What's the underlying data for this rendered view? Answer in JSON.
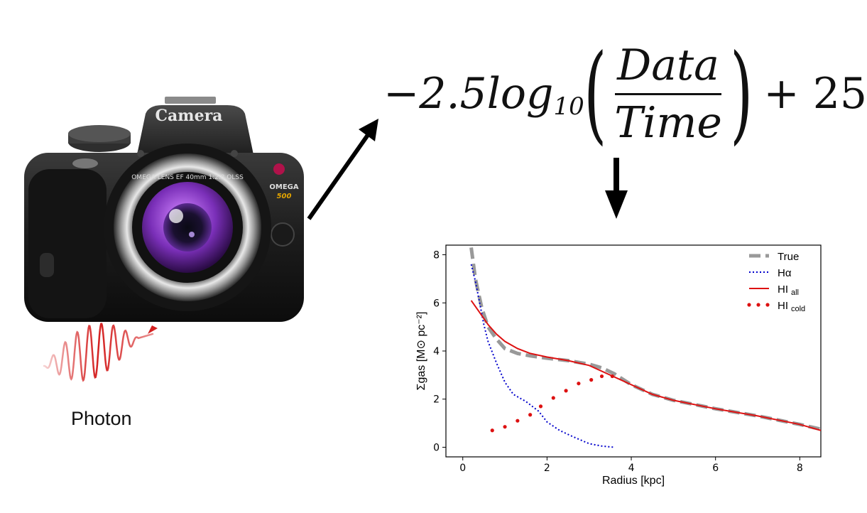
{
  "camera": {
    "brand": "Camera",
    "lens_text": "OMEGA LENS EF 40mm 1:2.8 OLSS",
    "model_badge": "OMEGA",
    "model_number": "500",
    "colors": {
      "body": "#1b1b1b",
      "lens": "#8b3fc9"
    }
  },
  "photon": {
    "label": "Photon",
    "color": "#d42020"
  },
  "formula": {
    "prefix": "−2.5",
    "func": "log",
    "sub": "10",
    "numerator": "Data",
    "denominator": "Time",
    "suffix": "+ 25"
  },
  "chart_data": {
    "type": "line",
    "xlabel": "Radius [kpc]",
    "ylabel": "Σgas [M⊙ pc⁻²]",
    "xlim": [
      -0.4,
      8.5
    ],
    "ylim": [
      -0.4,
      8.4
    ],
    "xticks": [
      0,
      2,
      4,
      6,
      8
    ],
    "yticks": [
      0,
      2,
      4,
      6,
      8
    ],
    "grid": false,
    "legend_position": "top-right",
    "series": [
      {
        "name": "True",
        "style": "dashed",
        "color": "#999999",
        "x": [
          0.2,
          0.3,
          0.45,
          0.6,
          0.8,
          1.0,
          1.3,
          1.6,
          2.0,
          2.5,
          3.0,
          3.3,
          3.6,
          4.0,
          4.5,
          5.0,
          6.0,
          7.0,
          8.0,
          8.5
        ],
        "y": [
          8.3,
          7.0,
          5.8,
          5.0,
          4.5,
          4.1,
          3.9,
          3.8,
          3.7,
          3.6,
          3.45,
          3.3,
          3.05,
          2.6,
          2.2,
          1.95,
          1.6,
          1.3,
          0.95,
          0.75
        ]
      },
      {
        "name": "Hα",
        "style": "dotted",
        "color": "#0000cc",
        "x": [
          0.2,
          0.3,
          0.4,
          0.5,
          0.6,
          0.8,
          1.0,
          1.2,
          1.5,
          1.8,
          2.0,
          2.3,
          2.6,
          3.0,
          3.3,
          3.6
        ],
        "y": [
          7.6,
          6.9,
          6.0,
          5.1,
          4.4,
          3.5,
          2.7,
          2.2,
          1.9,
          1.5,
          1.05,
          0.7,
          0.45,
          0.15,
          0.05,
          0.0
        ]
      },
      {
        "name": "HI all",
        "style": "solid",
        "color": "#dd1111",
        "x": [
          0.2,
          0.4,
          0.6,
          0.8,
          1.0,
          1.3,
          1.6,
          2.0,
          2.5,
          3.0,
          3.5,
          4.0,
          4.5,
          5.0,
          6.0,
          7.0,
          8.0,
          8.5
        ],
        "y": [
          6.1,
          5.6,
          5.1,
          4.7,
          4.4,
          4.1,
          3.9,
          3.75,
          3.6,
          3.4,
          3.0,
          2.6,
          2.2,
          1.95,
          1.6,
          1.3,
          0.95,
          0.7
        ]
      },
      {
        "name": "HI cold",
        "style": "dots",
        "color": "#dd1111",
        "x": [
          0.7,
          1.0,
          1.3,
          1.6,
          1.85,
          2.15,
          2.45,
          2.75,
          3.05,
          3.3,
          3.55
        ],
        "y": [
          0.7,
          0.85,
          1.1,
          1.35,
          1.7,
          2.05,
          2.35,
          2.65,
          2.8,
          2.95,
          2.95
        ]
      }
    ],
    "legend": [
      {
        "label": "True",
        "sub": ""
      },
      {
        "label": "Hα",
        "sub": ""
      },
      {
        "label": "HI",
        "sub": "all"
      },
      {
        "label": "HI",
        "sub": "cold"
      }
    ]
  }
}
